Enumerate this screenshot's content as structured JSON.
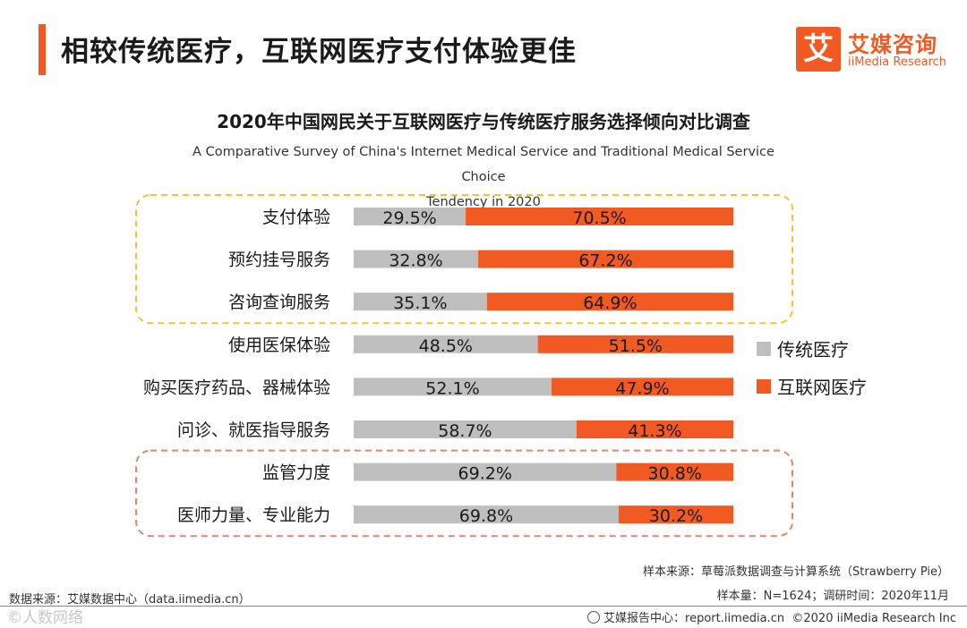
{
  "header": {
    "title": "相较传统医疗，互联网医疗支付体验更佳",
    "logo_mark": "艾",
    "logo_cn": "艾媒咨询",
    "logo_en": "iiMedia Research"
  },
  "colors": {
    "accent": "#f15a22",
    "traditional": "#bfbfbf",
    "internet": "#f15a22",
    "box_top": "#f2c23a",
    "box_bottom": "#e8836a"
  },
  "chart_data": {
    "type": "bar",
    "orientation": "horizontal-stacked-100",
    "title": "2020年中国网民关于互联网医疗与传统医疗服务选择倾向对比调查",
    "subtitle_line1": "A Comparative Survey of China's Internet Medical Service and Traditional Medical Service Choice",
    "subtitle_line2": "Tendency in 2020",
    "categories": [
      "支付体验",
      "预约挂号服务",
      "咨询查询服务",
      "使用医保体验",
      "购买医疗药品、器械体验",
      "问诊、就医指导服务",
      "监管力度",
      "医师力量、专业能力"
    ],
    "series": [
      {
        "name": "传统医疗",
        "values": [
          29.5,
          32.8,
          35.1,
          48.5,
          52.1,
          58.7,
          69.2,
          69.8
        ],
        "labels": [
          "29.5%",
          "32.8%",
          "35.1%",
          "48.5%",
          "52.1%",
          "58.7%",
          "69.2%",
          "69.8%"
        ]
      },
      {
        "name": "互联网医疗",
        "values": [
          70.5,
          67.2,
          64.9,
          51.5,
          47.9,
          41.3,
          30.8,
          30.2
        ],
        "labels": [
          "70.5%",
          "67.2%",
          "64.9%",
          "51.5%",
          "47.9%",
          "41.3%",
          "30.8%",
          "30.2%"
        ]
      }
    ],
    "legend_position": "right",
    "highlight_groups": [
      {
        "rows": [
          0,
          1,
          2
        ],
        "style": "dashed-yellow"
      },
      {
        "rows": [
          6,
          7
        ],
        "style": "dashed-orange"
      }
    ]
  },
  "footer": {
    "sample_source": "样本来源：草莓派数据调查与计算系统（Strawberry Pie）",
    "sample_size": "样本量：N=1624；调研时间：2020年11月",
    "data_source": "数据来源：艾媒数据中心（data.iimedia.cn）",
    "report_center": "艾媒报告中心：report.iimedia.cn",
    "copyright": "©2020 iiMedia Research Inc",
    "watermark": "©人数网络"
  }
}
